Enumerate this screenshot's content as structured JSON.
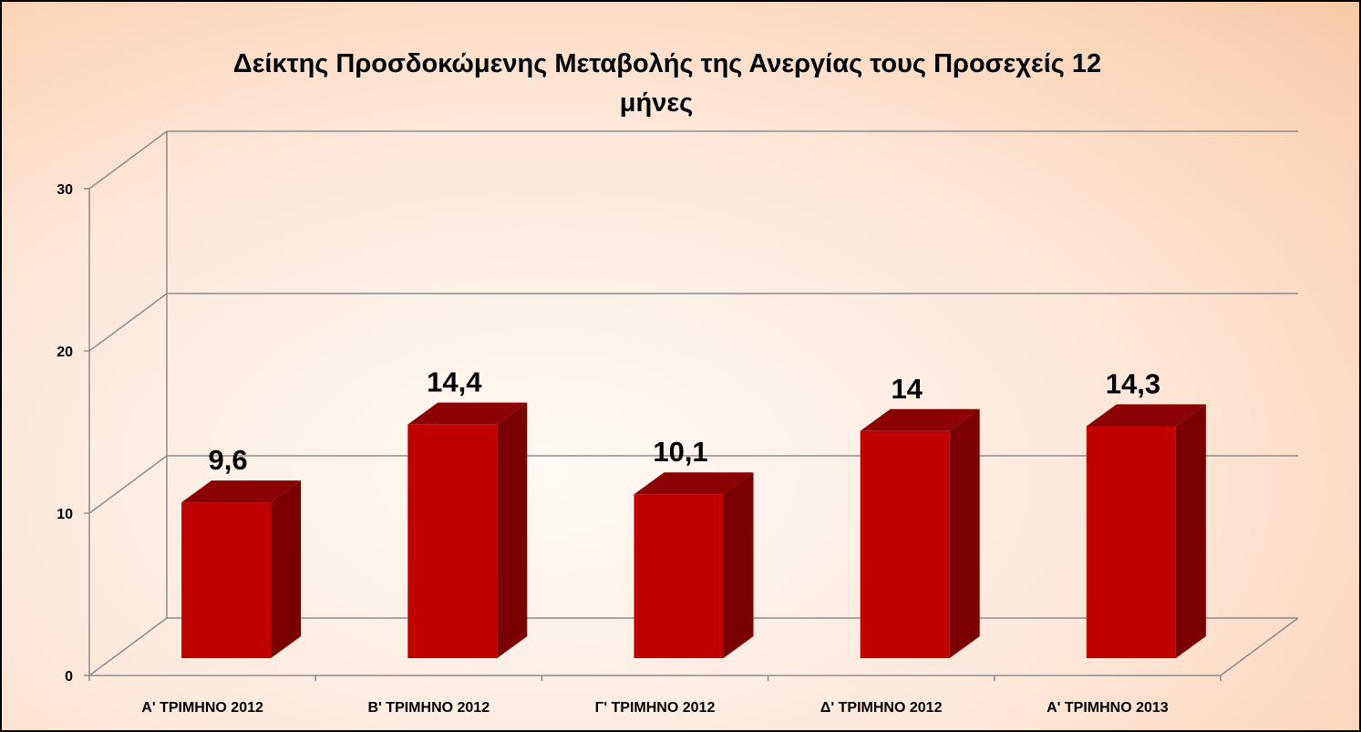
{
  "colors": {
    "bar_front": "#c00000",
    "bar_side": "#7a0000",
    "bar_top": "#8b0000",
    "gridline": "#8c8c8c"
  },
  "chart_data": {
    "type": "bar",
    "title_lines": [
      "Δείκτης Προσδοκώμενης Μεταβολής της Ανεργίας τους Προσεχείς 12",
      "μήνες"
    ],
    "categories": [
      "Α' ΤΡΙΜΗΝΟ 2012",
      "Β' ΤΡΙΜΗΝΟ 2012",
      "Γ' ΤΡΙΜΗΝΟ 2012",
      "Δ' ΤΡΙΜΗΝΟ 2012",
      "Α' ΤΡΙΜΗΝΟ 2013"
    ],
    "values": [
      9.6,
      14.4,
      10.1,
      14,
      14.3
    ],
    "data_labels": [
      "9,6",
      "14,4",
      "10,1",
      "14",
      "14,3"
    ],
    "y_ticks": [
      0,
      10,
      20,
      30
    ],
    "y_tick_labels": [
      "0",
      "10",
      "20",
      "30"
    ],
    "ylim": [
      0,
      30
    ],
    "xlabel": "",
    "ylabel": "",
    "grid": true,
    "three_d": true
  }
}
